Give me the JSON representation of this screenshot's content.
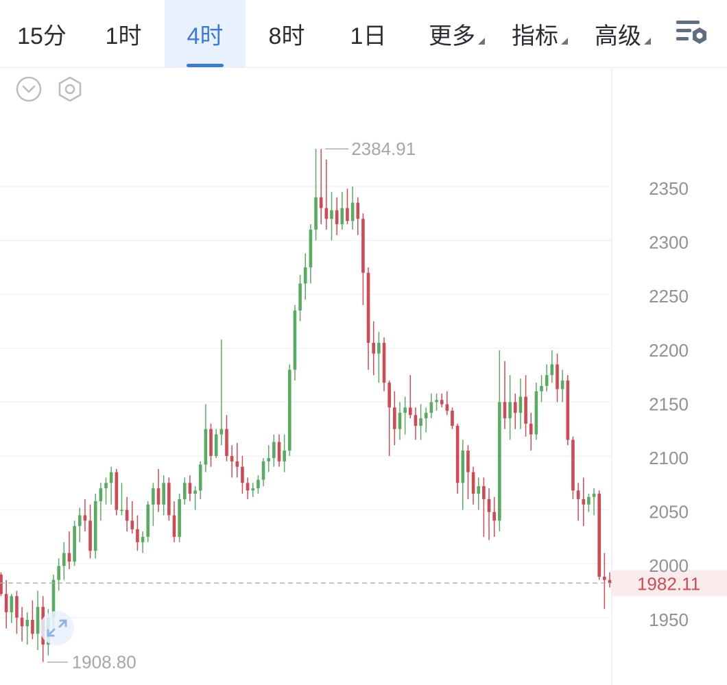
{
  "toolbar": {
    "tabs": [
      "15分",
      "1时",
      "4时",
      "8时",
      "1日"
    ],
    "active_tab": "4时",
    "dropdowns": [
      "更多",
      "指标",
      "高级"
    ],
    "settings_icon": "list-settings-icon"
  },
  "chart_controls": {
    "collapse_icon": "chevron-down-circle-icon",
    "settings_icon": "hexagon-settings-icon",
    "expand_icon": "expand-arrows-icon"
  },
  "colors": {
    "up": "#5aab62",
    "down": "#cf4a54",
    "accent": "#3b7bd8"
  },
  "chart_data": {
    "type": "candlestick",
    "interval": "4时",
    "y_ticks": [
      1950,
      2000,
      2050,
      2100,
      2150,
      2200,
      2250,
      2300,
      2350
    ],
    "ylim": [
      1905,
      2410
    ],
    "grid": true,
    "high_label": "2384.91",
    "low_label": "1908.80",
    "last_price": 1982.11,
    "last_price_label": "1982.11",
    "candles": [
      [
        1990,
        1992,
        1970,
        1972
      ],
      [
        1972,
        1985,
        1940,
        1955
      ],
      [
        1955,
        1972,
        1945,
        1970
      ],
      [
        1970,
        1975,
        1935,
        1950
      ],
      [
        1950,
        1960,
        1928,
        1942
      ],
      [
        1942,
        1955,
        1925,
        1948
      ],
      [
        1948,
        1966,
        1930,
        1935
      ],
      [
        1935,
        1975,
        1920,
        1960
      ],
      [
        1960,
        1970,
        1908.8,
        1925
      ],
      [
        1925,
        1958,
        1915,
        1950
      ],
      [
        1950,
        1990,
        1940,
        1985
      ],
      [
        1985,
        2005,
        1975,
        1998
      ],
      [
        1998,
        2020,
        1985,
        2010
      ],
      [
        2010,
        2030,
        1995,
        2002
      ],
      [
        2002,
        2040,
        1998,
        2035
      ],
      [
        2035,
        2052,
        2020,
        2045
      ],
      [
        2045,
        2060,
        2030,
        2040
      ],
      [
        2040,
        2055,
        2005,
        2012
      ],
      [
        2012,
        2065,
        2005,
        2058
      ],
      [
        2058,
        2075,
        2040,
        2070
      ],
      [
        2070,
        2080,
        2055,
        2075
      ],
      [
        2075,
        2090,
        2055,
        2085
      ],
      [
        2085,
        2088,
        2045,
        2050
      ],
      [
        2050,
        2075,
        2045,
        2050
      ],
      [
        2050,
        2062,
        2030,
        2040
      ],
      [
        2040,
        2058,
        2028,
        2032
      ],
      [
        2032,
        2045,
        2012,
        2020
      ],
      [
        2020,
        2030,
        2010,
        2025
      ],
      [
        2025,
        2058,
        2020,
        2055
      ],
      [
        2055,
        2075,
        2035,
        2070
      ],
      [
        2070,
        2088,
        2048,
        2055
      ],
      [
        2055,
        2082,
        2045,
        2075
      ],
      [
        2075,
        2080,
        2040,
        2045
      ],
      [
        2045,
        2058,
        2020,
        2025
      ],
      [
        2025,
        2065,
        2020,
        2060
      ],
      [
        2060,
        2080,
        2055,
        2075
      ],
      [
        2075,
        2082,
        2058,
        2065
      ],
      [
        2065,
        2072,
        2050,
        2068
      ],
      [
        2068,
        2095,
        2060,
        2092
      ],
      [
        2092,
        2148,
        2085,
        2125
      ],
      [
        2125,
        2130,
        2090,
        2100
      ],
      [
        2100,
        2125,
        2098,
        2120
      ],
      [
        2120,
        2208,
        2110,
        2125
      ],
      [
        2125,
        2138,
        2095,
        2100
      ],
      [
        2100,
        2110,
        2080,
        2095
      ],
      [
        2095,
        2112,
        2080,
        2090
      ],
      [
        2090,
        2100,
        2065,
        2075
      ],
      [
        2075,
        2080,
        2060,
        2068
      ],
      [
        2068,
        2075,
        2062,
        2070
      ],
      [
        2070,
        2082,
        2065,
        2078
      ],
      [
        2078,
        2098,
        2072,
        2095
      ],
      [
        2095,
        2110,
        2085,
        2098
      ],
      [
        2098,
        2120,
        2090,
        2113
      ],
      [
        2113,
        2120,
        2090,
        2095
      ],
      [
        2095,
        2120,
        2085,
        2105
      ],
      [
        2105,
        2185,
        2100,
        2180
      ],
      [
        2180,
        2240,
        2170,
        2235
      ],
      [
        2235,
        2268,
        2225,
        2260
      ],
      [
        2260,
        2288,
        2245,
        2275
      ],
      [
        2275,
        2315,
        2260,
        2310
      ],
      [
        2310,
        2385,
        2300,
        2340
      ],
      [
        2340,
        2384.91,
        2315,
        2330
      ],
      [
        2330,
        2375,
        2310,
        2320
      ],
      [
        2320,
        2345,
        2300,
        2328
      ],
      [
        2328,
        2340,
        2305,
        2315
      ],
      [
        2315,
        2345,
        2310,
        2330
      ],
      [
        2330,
        2348,
        2315,
        2318
      ],
      [
        2318,
        2350,
        2310,
        2335
      ],
      [
        2335,
        2340,
        2305,
        2320
      ],
      [
        2320,
        2325,
        2240,
        2270
      ],
      [
        2270,
        2275,
        2180,
        2205
      ],
      [
        2205,
        2225,
        2175,
        2195
      ],
      [
        2195,
        2215,
        2168,
        2205
      ],
      [
        2205,
        2210,
        2160,
        2168
      ],
      [
        2168,
        2170,
        2100,
        2145
      ],
      [
        2145,
        2160,
        2110,
        2125
      ],
      [
        2125,
        2150,
        2115,
        2140
      ],
      [
        2140,
        2155,
        2120,
        2145
      ],
      [
        2145,
        2175,
        2135,
        2138
      ],
      [
        2138,
        2145,
        2115,
        2128
      ],
      [
        2128,
        2148,
        2115,
        2135
      ],
      [
        2135,
        2145,
        2122,
        2140
      ],
      [
        2140,
        2158,
        2135,
        2150
      ],
      [
        2150,
        2158,
        2142,
        2152
      ],
      [
        2152,
        2158,
        2145,
        2148
      ],
      [
        2148,
        2160,
        2138,
        2142
      ],
      [
        2142,
        2145,
        2125,
        2128
      ],
      [
        2128,
        2130,
        2065,
        2075
      ],
      [
        2075,
        2115,
        2050,
        2105
      ],
      [
        2105,
        2110,
        2060,
        2085
      ],
      [
        2085,
        2090,
        2055,
        2065
      ],
      [
        2065,
        2080,
        2050,
        2072
      ],
      [
        2072,
        2080,
        2025,
        2060
      ],
      [
        2060,
        2070,
        2022,
        2048
      ],
      [
        2048,
        2062,
        2025,
        2040
      ],
      [
        2040,
        2198,
        2030,
        2150
      ],
      [
        2150,
        2188,
        2125,
        2135
      ],
      [
        2135,
        2175,
        2115,
        2150
      ],
      [
        2150,
        2158,
        2125,
        2140
      ],
      [
        2140,
        2172,
        2125,
        2155
      ],
      [
        2155,
        2175,
        2118,
        2130
      ],
      [
        2130,
        2140,
        2105,
        2120
      ],
      [
        2120,
        2168,
        2115,
        2160
      ],
      [
        2160,
        2175,
        2150,
        2165
      ],
      [
        2165,
        2185,
        2160,
        2175
      ],
      [
        2175,
        2198,
        2168,
        2185
      ],
      [
        2185,
        2195,
        2150,
        2162
      ],
      [
        2162,
        2180,
        2150,
        2170
      ],
      [
        2170,
        2175,
        2110,
        2115
      ],
      [
        2115,
        2118,
        2060,
        2068
      ],
      [
        2068,
        2075,
        2040,
        2060
      ],
      [
        2060,
        2080,
        2035,
        2055
      ],
      [
        2055,
        2065,
        2048,
        2062
      ],
      [
        2062,
        2070,
        2045,
        2065
      ],
      [
        2065,
        2068,
        1985,
        1988
      ],
      [
        1988,
        2010,
        1958,
        1985
      ],
      [
        1985,
        1992,
        1978,
        1982.11
      ]
    ]
  }
}
